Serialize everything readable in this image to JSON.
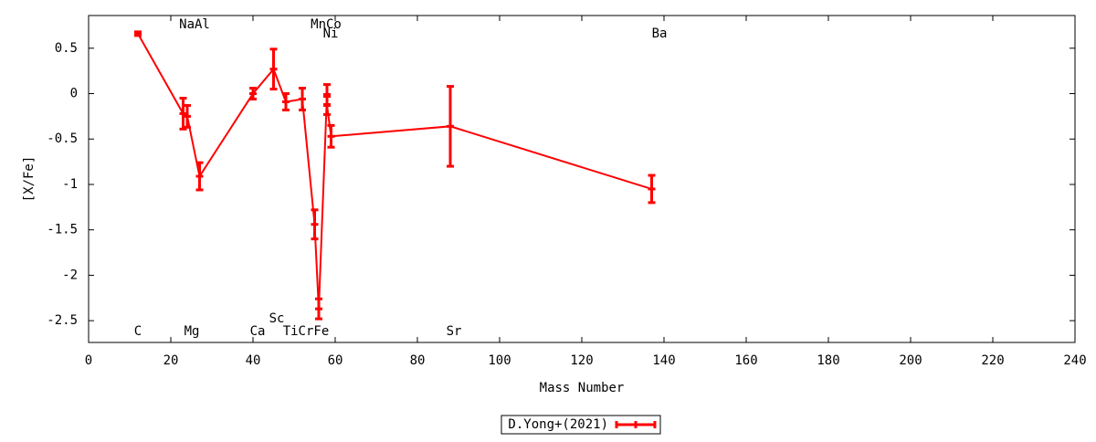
{
  "chart_data": {
    "type": "errorbar-line",
    "xlabel": "Mass Number",
    "ylabel": "[X/Fe]",
    "xlim": [
      0,
      240
    ],
    "xticks": [
      0,
      20,
      40,
      60,
      80,
      100,
      120,
      140,
      160,
      180,
      200,
      220,
      240
    ],
    "ylim": [
      -2.74,
      0.86
    ],
    "yticks": [
      0.5,
      0,
      -0.5,
      -1,
      -1.5,
      -2,
      -2.5
    ],
    "legend": "bottom",
    "series": [
      {
        "name": "D.Yong+(2021)",
        "color": "#ff0000",
        "x": [
          12,
          23,
          24,
          27,
          40,
          45,
          48,
          52,
          55,
          56,
          58,
          58,
          59,
          88,
          137
        ],
        "values": [
          0.66,
          -0.22,
          -0.25,
          -0.91,
          0.0,
          0.27,
          -0.09,
          -0.06,
          -1.44,
          -2.37,
          -0.01,
          -0.13,
          -0.47,
          -0.36,
          -1.05
        ],
        "errors": [
          0.02,
          0.17,
          0.12,
          0.15,
          0.06,
          0.22,
          0.09,
          0.12,
          0.16,
          0.11,
          0.11,
          0.1,
          0.12,
          0.44,
          0.15
        ]
      }
    ],
    "annotations": [
      "C",
      "NaAl",
      "Mg",
      "Ca",
      "Sc",
      "TiCrFe",
      "MnCo",
      "Ni",
      "Sr",
      "Ba"
    ]
  }
}
